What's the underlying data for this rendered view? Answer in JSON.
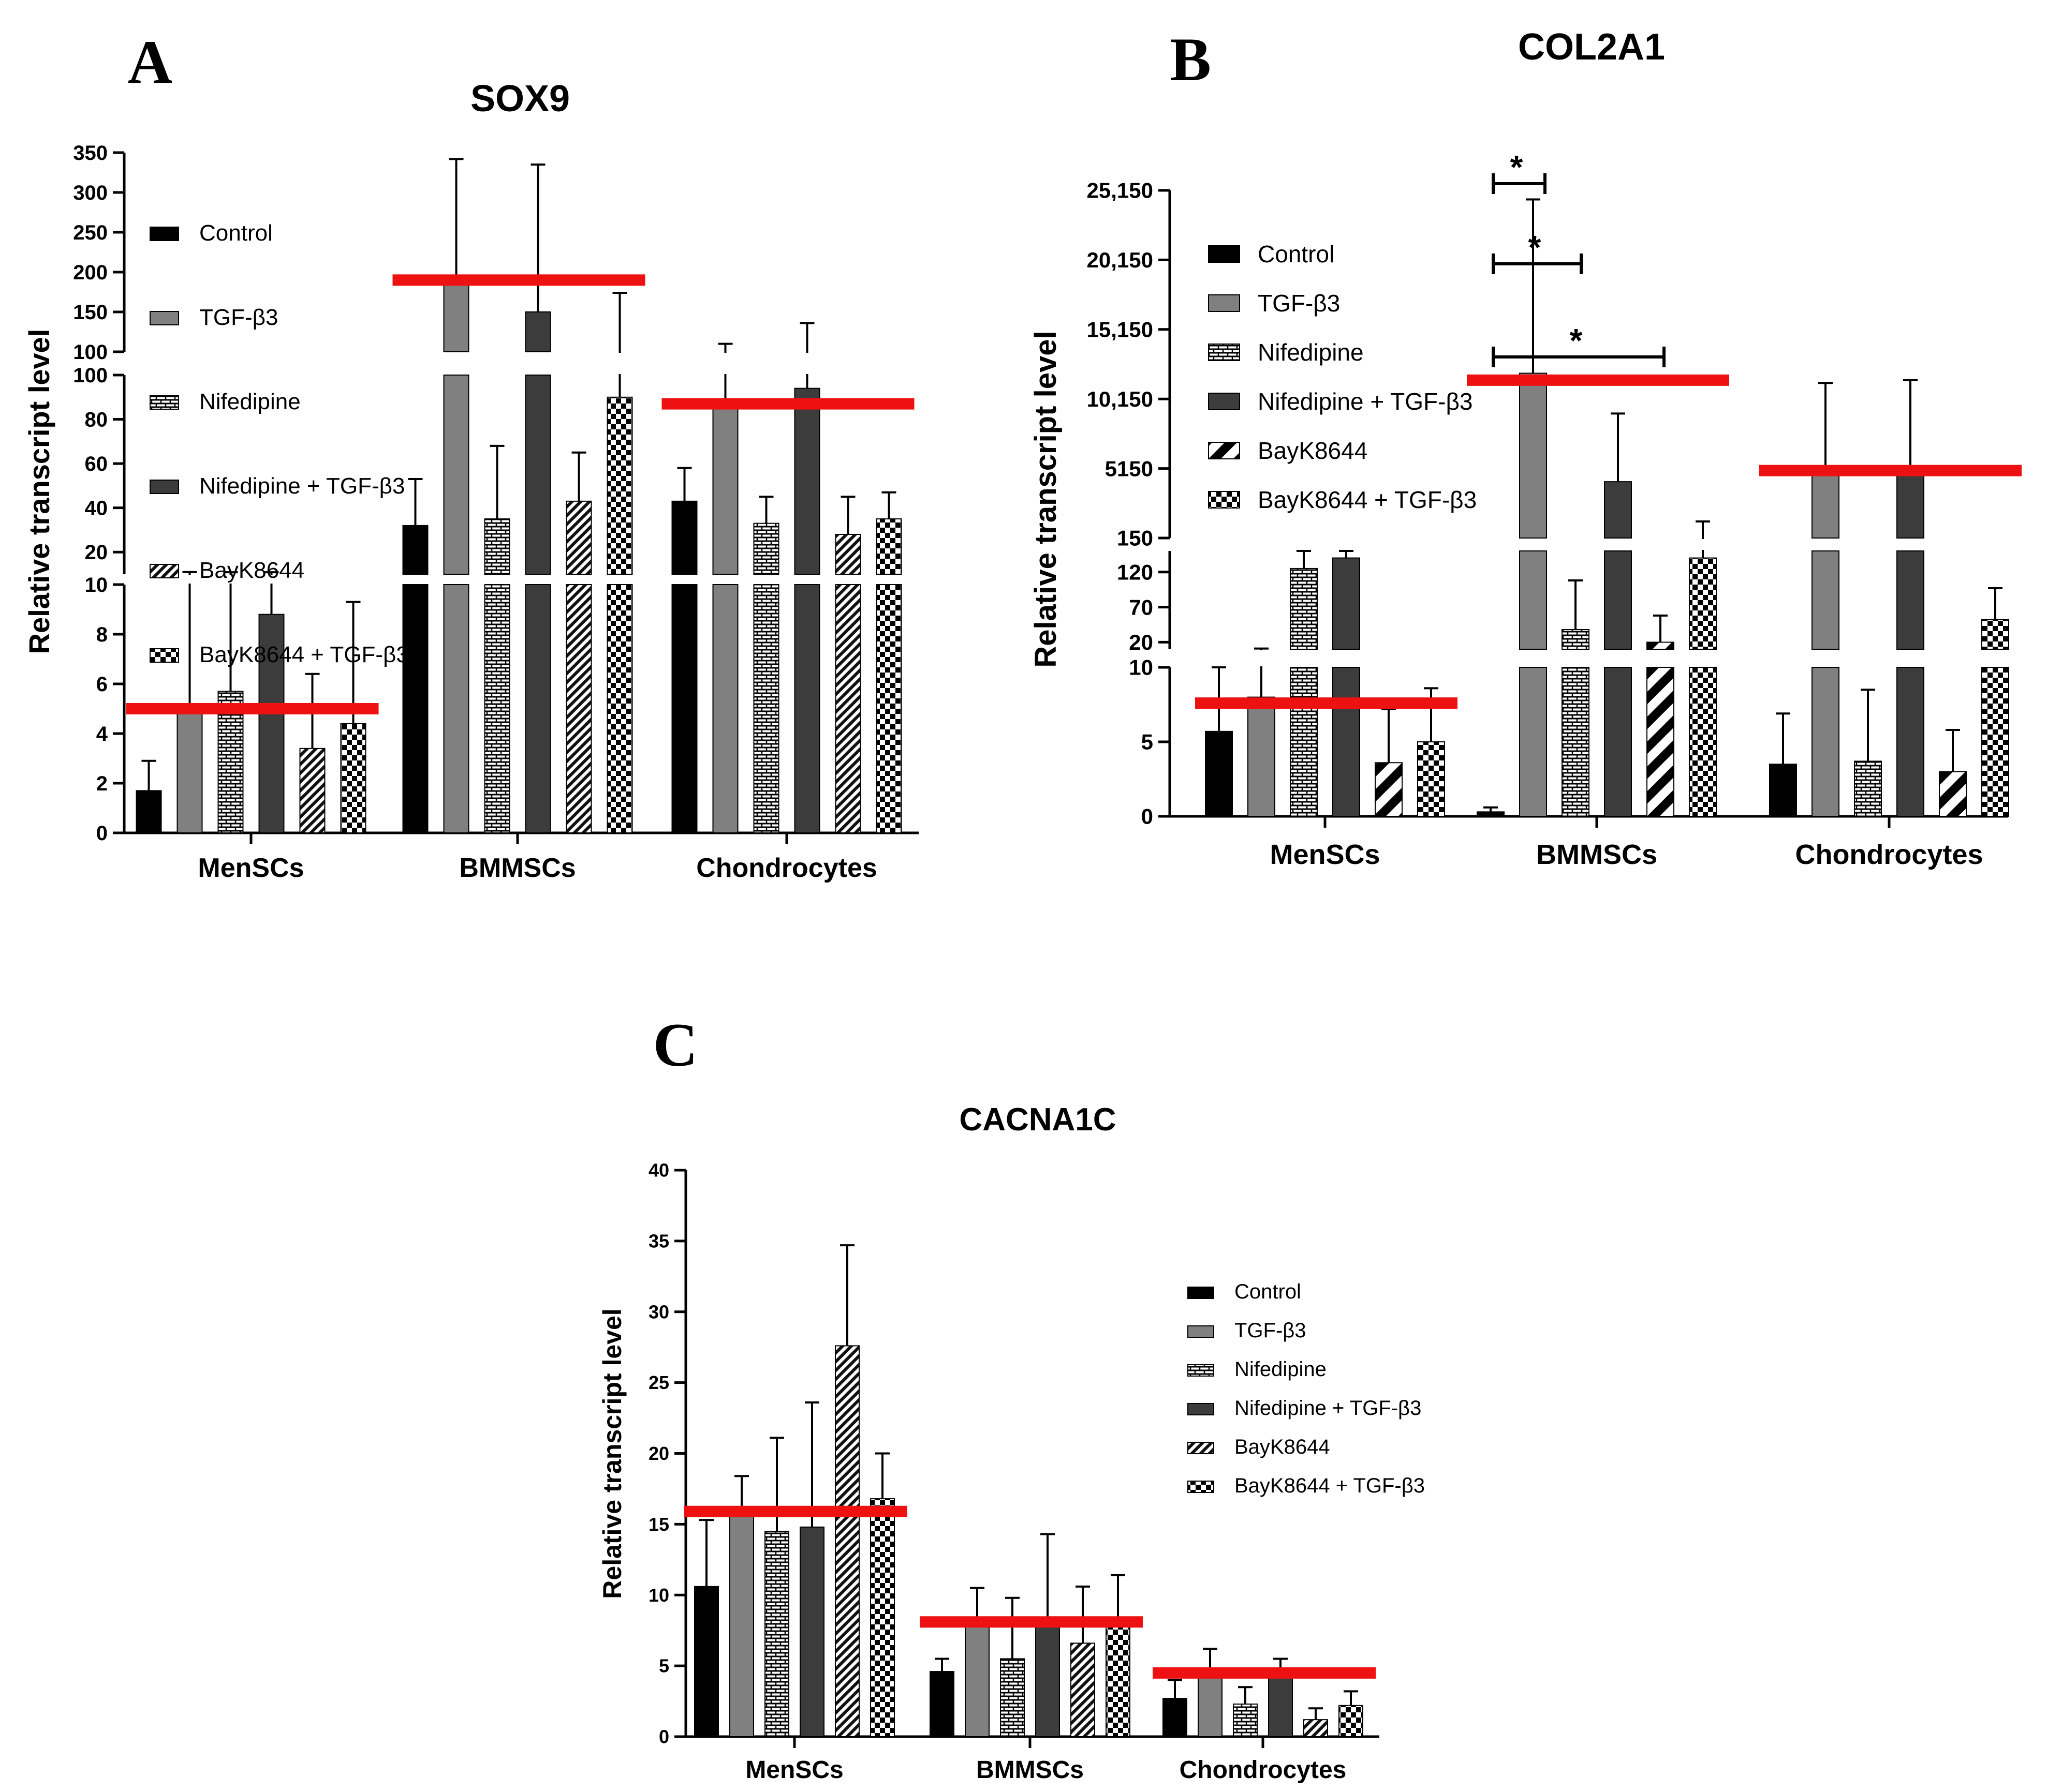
{
  "panels": [
    {
      "letter": "A",
      "chart_data": {
        "type": "bar",
        "title": "SOX9",
        "ylabel": "Relative transcript level",
        "xlabel": "",
        "categories": [
          "MenSCs",
          "BMMSCs",
          "Chondrocytes"
        ],
        "y_axis_segments": [
          {
            "range": [
              0,
              10
            ],
            "ticks": [
              0,
              2,
              4,
              6,
              8,
              10
            ],
            "tick_labels": [
              "0",
              "2",
              "4",
              "6",
              "8",
              "10"
            ]
          },
          {
            "range": [
              10,
              100
            ],
            "ticks": [
              20,
              40,
              60,
              80,
              100
            ],
            "tick_labels": [
              "20",
              "40",
              "60",
              "80",
              "100"
            ]
          },
          {
            "range": [
              100,
              350
            ],
            "ticks": [
              100,
              150,
              200,
              250,
              300,
              350
            ],
            "tick_labels": [
              "100",
              "150",
              "200",
              "250",
              "300",
              "350"
            ]
          }
        ],
        "series": [
          {
            "name": "Control",
            "values": [
              1.7,
              32,
              43
            ],
            "error": [
              1.2,
              21,
              15
            ]
          },
          {
            "name": "TGF-β3",
            "values": [
              5,
              190,
              88
            ],
            "error": [
              6,
              152,
              22
            ]
          },
          {
            "name": "Nifedipine",
            "values": [
              5.7,
              35,
              33
            ],
            "error": [
              5.2,
              33,
              12
            ]
          },
          {
            "name": "Nifedipine + TGF-β3",
            "values": [
              8.8,
              150,
              94
            ],
            "error": [
              2.1,
              185,
              42
            ]
          },
          {
            "name": "BayK8644",
            "values": [
              3.4,
              43,
              28
            ],
            "error": [
              3,
              22,
              17
            ]
          },
          {
            "name": "BayK8644 + TGF-β3",
            "values": [
              4.4,
              90,
              35
            ],
            "error": [
              4.9,
              84,
              12
            ]
          }
        ],
        "mean_lines": [
          5,
          190,
          87
        ],
        "legend": "top-left"
      }
    },
    {
      "letter": "B",
      "chart_data": {
        "type": "bar",
        "title": "COL2A1",
        "ylabel": "Relative transcript level",
        "xlabel": "",
        "categories": [
          "MenSCs",
          "BMMSCs",
          "Chondrocytes"
        ],
        "y_axis_segments": [
          {
            "range": [
              0,
              10
            ],
            "ticks": [
              0,
              5,
              10
            ],
            "tick_labels": [
              "0",
              "5",
              "10"
            ]
          },
          {
            "range": [
              10,
              150
            ],
            "ticks": [
              20,
              70,
              120
            ],
            "tick_labels": [
              "20",
              "70",
              "120"
            ]
          },
          {
            "range": [
              150,
              25150
            ],
            "ticks": [
              150,
              5150,
              10150,
              15150,
              20150,
              25150
            ],
            "tick_labels": [
              "150",
              "5150",
              "10,150",
              "15,150",
              "20,150",
              "25,150"
            ]
          }
        ],
        "series": [
          {
            "name": "Control",
            "values": [
              5.7,
              0.3,
              3.5
            ],
            "error": [
              4.3,
              0.3,
              3.4
            ]
          },
          {
            "name": "TGF-β3",
            "values": [
              8,
              12000,
              4800
            ],
            "error": [
              3,
              12500,
              6500
            ]
          },
          {
            "name": "Nifedipine",
            "values": [
              125,
              38,
              3.7
            ],
            "error": [
              25,
              70,
              4.8
            ]
          },
          {
            "name": "Nifedipine + TGF-β3",
            "values": [
              140,
              4200,
              4700
            ],
            "error": [
              10,
              4900,
              6800
            ]
          },
          {
            "name": "BayK8644",
            "values": [
              3.6,
              20,
              3.0
            ],
            "error": [
              3.6,
              38,
              2.8
            ]
          },
          {
            "name": "BayK8644 + TGF-β3",
            "values": [
              5.0,
              140,
              52
            ],
            "error": [
              3.6,
              1200,
              45
            ]
          }
        ],
        "mean_lines": [
          7.6,
          11500,
          5000
        ],
        "annotations": [
          "*",
          "*",
          "*"
        ],
        "legend": "top-left"
      }
    },
    {
      "letter": "C",
      "chart_data": {
        "type": "bar",
        "title": "CACNA1C",
        "ylabel": "Relative transcript level",
        "xlabel": "",
        "categories": [
          "MenSCs",
          "BMMSCs",
          "Chondrocytes"
        ],
        "ylim": [
          0,
          40
        ],
        "ticks": [
          0,
          5,
          10,
          15,
          20,
          25,
          30,
          35,
          40
        ],
        "tick_labels": [
          "0",
          "5",
          "10",
          "15",
          "20",
          "25",
          "30",
          "35",
          "40"
        ],
        "series": [
          {
            "name": "Control",
            "values": [
              10.6,
              4.6,
              2.7
            ],
            "error": [
              4.7,
              0.9,
              1.3
            ]
          },
          {
            "name": "TGF-β3",
            "values": [
              16,
              8,
              4.4
            ],
            "error": [
              2.4,
              2.5,
              1.8
            ]
          },
          {
            "name": "Nifedipine",
            "values": [
              14.5,
              5.5,
              2.3
            ],
            "error": [
              6.6,
              4.3,
              1.2
            ]
          },
          {
            "name": "Nifedipine + TGF-β3",
            "values": [
              14.8,
              8,
              4.3
            ],
            "error": [
              8.8,
              6.3,
              1.2
            ]
          },
          {
            "name": "BayK8644",
            "values": [
              27.6,
              6.6,
              1.2
            ],
            "error": [
              7.1,
              4.0,
              0.8
            ]
          },
          {
            "name": "BayK8644 + TGF-β3",
            "values": [
              16.8,
              8,
              2.2
            ],
            "error": [
              3.2,
              3.4,
              1.0
            ]
          }
        ],
        "mean_lines": [
          15.9,
          8.1,
          4.5
        ],
        "legend": "right"
      }
    }
  ],
  "colors": {
    "control": "#000000",
    "tgf": "#808080",
    "nifedipine": "#ffffff",
    "nife_tgf": "#3c3c3c",
    "bayk": "#ffffff",
    "bayk_tgf": "#ffffff",
    "mean_line": "#ee1111"
  }
}
